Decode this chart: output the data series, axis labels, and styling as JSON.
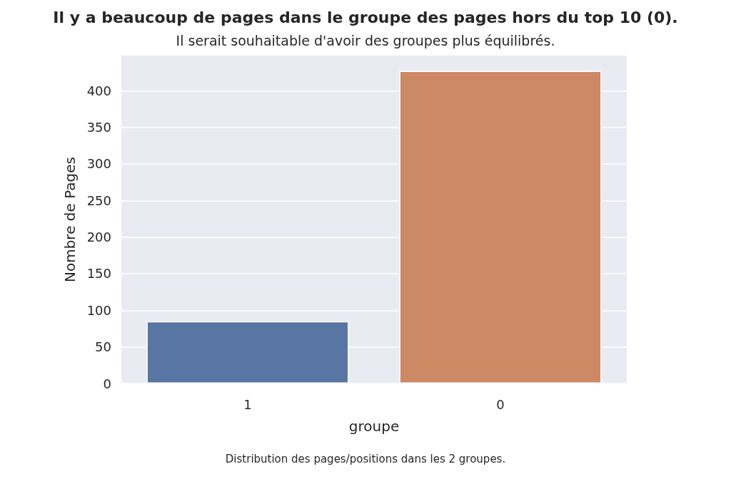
{
  "chart_data": {
    "type": "bar",
    "title": "Il y a beaucoup de pages dans le groupe des pages hors du top 10 (0).",
    "subtitle": "Il serait souhaitable d'avoir des groupes plus équilibrés.",
    "xlabel": "groupe",
    "ylabel": "Nombre de Pages",
    "categories": [
      "1",
      "0"
    ],
    "values": [
      85,
      427
    ],
    "colors": [
      "#5875a4",
      "#cc8963"
    ],
    "ylim": [
      0,
      448
    ],
    "yticks": [
      0,
      50,
      100,
      150,
      200,
      250,
      300,
      350,
      400
    ],
    "grid": "y",
    "annotations": [
      "Distribution des pages/positions dans les 2 groupes."
    ]
  }
}
